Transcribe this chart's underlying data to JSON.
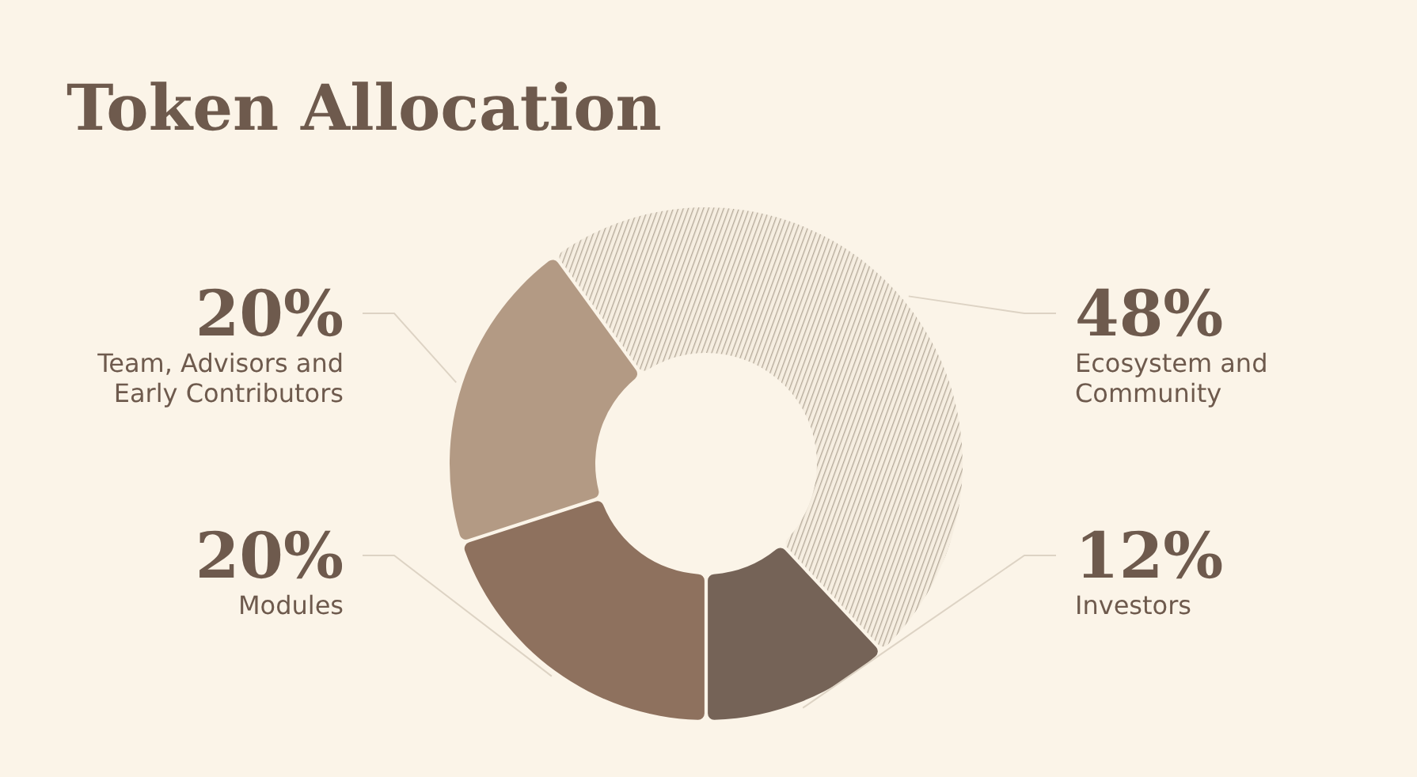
{
  "chart_data": {
    "type": "donut",
    "title": "Token Allocation",
    "categories": [
      "Ecosystem and Community",
      "Investors",
      "Modules",
      "Team, Advisors and Early Contributors"
    ],
    "values": [
      48,
      12,
      20,
      20
    ],
    "colors": [
      "#b3a898",
      "#756357",
      "#8e715e",
      "#b39a84"
    ],
    "value_labels": [
      "48%",
      "12%",
      "20%",
      "20%"
    ]
  }
}
